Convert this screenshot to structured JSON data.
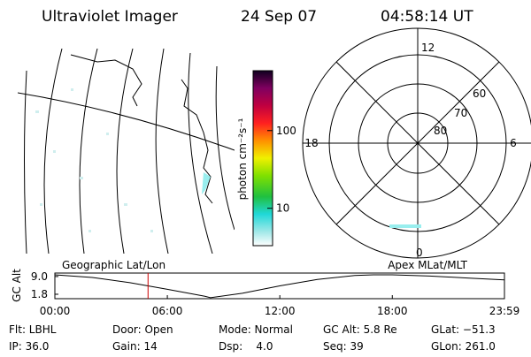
{
  "header": {
    "title": "Ultraviolet Imager",
    "date": "24 Sep 07",
    "time": "04:58:14 UT"
  },
  "colorbar": {
    "label": "photon cm⁻²s⁻¹",
    "lim": [
      3.3,
      590
    ],
    "log": true,
    "ticks": [
      10,
      100
    ]
  },
  "polar": {
    "mlt_labels": [
      "12",
      "18",
      "6",
      "0"
    ],
    "lat_labels": [
      "60",
      "70",
      "80"
    ]
  },
  "chart_data": {
    "type": "line",
    "title_left": "Geographic Lat/Lon",
    "title_right": "Apex MLat/MLT",
    "ylabel": "GC Alt",
    "x": [
      0,
      2,
      4,
      6,
      8,
      8.3,
      10,
      12,
      14,
      16,
      17,
      18,
      20,
      22,
      23.983
    ],
    "series": [
      {
        "color": "#000000",
        "values": [
          9.7,
          8.6,
          6.5,
          3.8,
          1.0,
          0.4,
          2.2,
          5.2,
          7.8,
          9.4,
          9.7,
          9.7,
          9.2,
          8.4,
          7.6
        ]
      }
    ],
    "marker_x": 4.97,
    "marker_color": "#cc0000",
    "xlim": [
      0,
      23.983
    ],
    "xticks": [
      {
        "value": 0,
        "label": "00:00"
      },
      {
        "value": 6,
        "label": "06:00"
      },
      {
        "value": 12,
        "label": "12:00"
      },
      {
        "value": 18,
        "label": "18:00"
      },
      {
        "value": 23.983,
        "label": "23:59"
      }
    ],
    "ylim": [
      0,
      10.4
    ],
    "yticks": [
      {
        "value": 9,
        "label": "9.0"
      },
      1.8
    ]
  },
  "footer": {
    "rows": [
      [
        "Flt: LBHL",
        "Door: Open",
        "Mode: Normal",
        "GC Alt: 5.8 Re",
        "GLat: −51.3"
      ],
      [
        "IP: 36.0",
        "Gain: 14",
        "Dsp:    4.0",
        "Seq: 39",
        "GLon: 261.0"
      ]
    ]
  }
}
